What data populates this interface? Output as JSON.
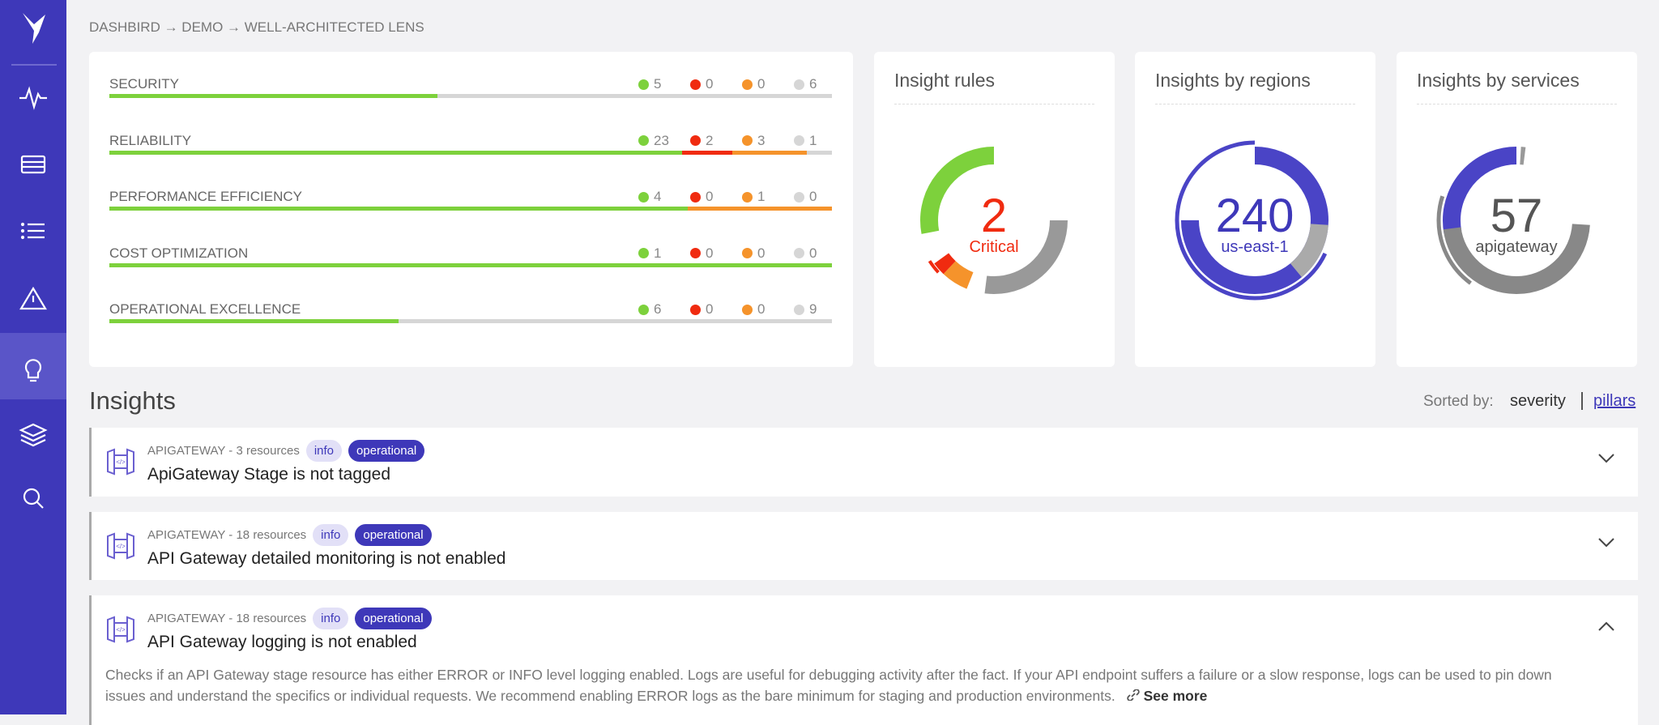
{
  "breadcrumb": "DASHBIRD → DEMO → WELL-ARCHITECTED LENS",
  "status_colors": [
    "#7dd13c",
    "#f02b10",
    "#f5932b",
    "#d6d6d6"
  ],
  "pillars": [
    {
      "name": "SECURITY",
      "counts": [
        5,
        0,
        0,
        6
      ]
    },
    {
      "name": "RELIABILITY",
      "counts": [
        23,
        2,
        3,
        1
      ]
    },
    {
      "name": "PERFORMANCE EFFICIENCY",
      "counts": [
        4,
        0,
        1,
        0
      ]
    },
    {
      "name": "COST OPTIMIZATION",
      "counts": [
        1,
        0,
        0,
        0
      ]
    },
    {
      "name": "OPERATIONAL EXCELLENCE",
      "counts": [
        6,
        0,
        0,
        9
      ]
    }
  ],
  "cards": [
    {
      "title": "Insight rules",
      "value": 2,
      "label": "Critical"
    },
    {
      "title": "Insights by regions",
      "value": 240,
      "label": "us-east-1"
    },
    {
      "title": "Insights by services",
      "value": 57,
      "label": "apigateway"
    }
  ],
  "insights": {
    "title": "Insights",
    "sorted_by": "Sorted by:",
    "sort_options": [
      "severity",
      "pillars"
    ],
    "items": [
      {
        "meta": "APIGATEWAY - 3 resources",
        "tags": [
          "info",
          "operational"
        ],
        "title": "ApiGateway Stage is not tagged"
      },
      {
        "meta": "APIGATEWAY - 18 resources",
        "tags": [
          "info",
          "operational"
        ],
        "title": "API Gateway detailed monitoring is not enabled"
      },
      {
        "meta": "APIGATEWAY - 18 resources",
        "tags": [
          "info",
          "operational"
        ],
        "title": "API Gateway logging is not enabled",
        "description": [
          "Checks if an API Gateway stage resource has either ERROR or INFO level logging enabled. Logs are useful for debugging activity after the fact. If your API endpoint suffers a failure or a slow response, logs can be used to pin down",
          "issues and understand the specifics or individual requests. We recommend enabling ERROR logs as the bare minimum for staging and production environments."
        ],
        "link": "See more"
      }
    ]
  }
}
